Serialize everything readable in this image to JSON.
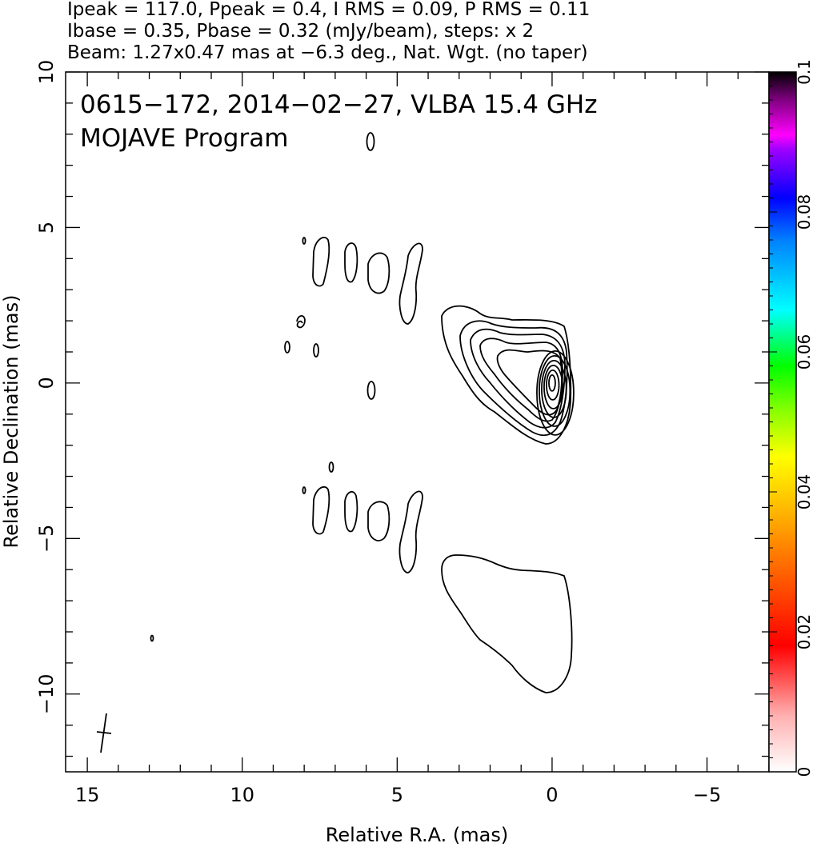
{
  "header": {
    "line1": "Ipeak = 117.0, Ppeak = 0.4, I RMS = 0.09, P RMS = 0.11",
    "line2": "Ibase = 0.35, Pbase = 0.32 (mJy/beam), steps: x 2",
    "line3": "Beam: 1.27x0.47 mas at −6.3 deg., Nat. Wgt. (no taper)"
  },
  "plot_title": {
    "line1": "0615−172, 2014−02−27, VLBA 15.4 GHz",
    "line2": "MOJAVE Program"
  },
  "chart_data": {
    "type": "contour",
    "xlabel": "Relative R.A. (mas)",
    "ylabel": "Relative Declination (mas)",
    "xlim": [
      15.7,
      -7.0
    ],
    "ylim": [
      -12.5,
      10.0
    ],
    "x_ticks": [
      15,
      10,
      5,
      0,
      -5
    ],
    "x_tick_labels": [
      "15",
      "10",
      "5",
      "0",
      "−5"
    ],
    "y_ticks": [
      10,
      5,
      0,
      -5,
      -10
    ],
    "y_tick_labels": [
      "10",
      "5",
      "0",
      "−5",
      "−10"
    ],
    "contour_base_mJy_per_beam": 0.35,
    "contour_step_factor": 2,
    "core_position": [
      0,
      0
    ],
    "core_contour_levels": 10,
    "beam": {
      "major_mas": 1.27,
      "minor_mas": 0.47,
      "pa_deg": -6.3,
      "position": [
        14.4,
        -11.2
      ]
    },
    "colorbar": {
      "range": [
        0,
        0.1
      ],
      "ticks": [
        0,
        0.02,
        0.04,
        0.06,
        0.08,
        0.1
      ],
      "tick_labels": [
        "0",
        "0.02",
        "0.04",
        "0.06",
        "0.08",
        "0.1"
      ],
      "colors": [
        "#ffffff",
        "#ff0000",
        "#ff8000",
        "#ffff00",
        "#00ff00",
        "#00ffff",
        "#0000ff",
        "#ff00ff",
        "#000000"
      ]
    }
  }
}
